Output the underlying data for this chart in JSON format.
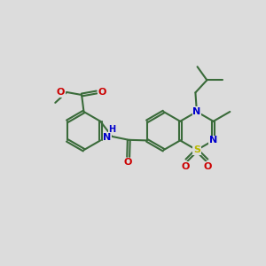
{
  "bg": "#dcdcdc",
  "bond_color": "#3a6b3a",
  "atom_colors": {
    "O": "#cc0000",
    "N": "#0000cc",
    "S": "#b8b800",
    "C": "#3a6b3a"
  },
  "bond_lw": 1.5,
  "font_size": 8.0,
  "small_font": 6.0,
  "BL": 0.72
}
